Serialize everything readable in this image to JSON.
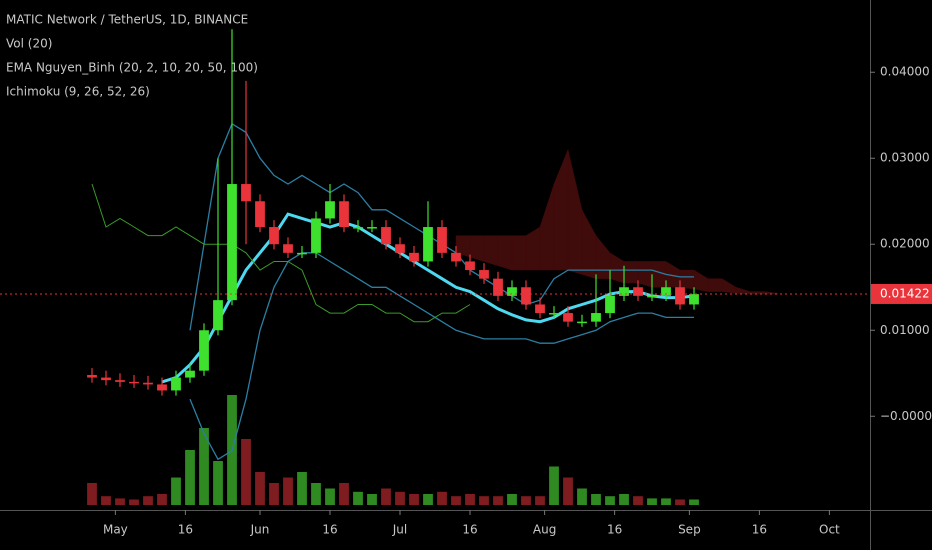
{
  "chart_data": {
    "type": "candlestick",
    "title": "MATIC Network / TetherUS, 1D, BINANCE",
    "indicators": [
      "Vol (20)",
      "EMA Nguyen_Binh (20, 2, 10, 20, 50, 100)",
      "Ichimoku (9, 26, 52, 26)"
    ],
    "categories": [
      null,
      null,
      null,
      null,
      null,
      null,
      null,
      null,
      null,
      null,
      null,
      null,
      null,
      null,
      null,
      null,
      null,
      null,
      null,
      null,
      null,
      null,
      null,
      null,
      null,
      null,
      null,
      null,
      null,
      null,
      null,
      null,
      null,
      null,
      null,
      null,
      null,
      null,
      null,
      null,
      null,
      null,
      null,
      null,
      null,
      null,
      null,
      null,
      null,
      null
    ],
    "open": [
      0.0048,
      0.0045,
      0.0042,
      0.004,
      0.0039,
      0.0037,
      0.003,
      0.0045,
      0.0053,
      0.01,
      0.0135,
      0.027,
      0.025,
      0.022,
      0.02,
      0.019,
      0.019,
      0.023,
      0.025,
      0.022,
      0.022,
      0.022,
      0.02,
      0.019,
      0.018,
      0.022,
      0.019,
      0.018,
      0.017,
      0.016,
      0.014,
      0.015,
      0.013,
      0.012,
      0.012,
      0.011,
      0.011,
      0.012,
      0.014,
      0.015,
      0.014,
      0.014,
      0.015,
      0.013,
      null,
      null,
      null,
      null,
      null,
      null
    ],
    "high": [
      0.0056,
      0.0053,
      0.005,
      0.0048,
      0.0047,
      0.0045,
      0.0053,
      0.0061,
      0.0108,
      0.03,
      0.045,
      0.039,
      0.0258,
      0.0228,
      0.0208,
      0.0198,
      0.0238,
      0.027,
      0.0258,
      0.0228,
      0.0228,
      0.0228,
      0.0208,
      0.0198,
      0.025,
      0.0228,
      0.0198,
      0.0188,
      0.0178,
      0.0168,
      0.0158,
      0.0158,
      0.0138,
      0.0128,
      0.0128,
      0.0118,
      0.0165,
      0.017,
      0.0175,
      0.0158,
      0.0165,
      0.0158,
      0.0158,
      0.015,
      null,
      null,
      null,
      null,
      null,
      null
    ],
    "low": [
      0.0039,
      0.0036,
      0.0034,
      0.0033,
      0.0031,
      0.0024,
      0.0024,
      0.0039,
      0.0047,
      0.0094,
      0.0129,
      0.02,
      0.0214,
      0.0194,
      0.0184,
      0.0184,
      0.0184,
      0.0224,
      0.0214,
      0.0214,
      0.0214,
      0.0194,
      0.0184,
      0.0174,
      0.0174,
      0.0184,
      0.0174,
      0.0164,
      0.0154,
      0.0134,
      0.0134,
      0.0124,
      0.0114,
      0.0114,
      0.0104,
      0.0104,
      0.0104,
      0.0114,
      0.0134,
      0.0134,
      0.0134,
      0.0134,
      0.0124,
      0.0124,
      null,
      null,
      null,
      null,
      null,
      null
    ],
    "close": [
      0.0045,
      0.0042,
      0.004,
      0.0039,
      0.0037,
      0.003,
      0.0045,
      0.0053,
      0.01,
      0.0135,
      0.027,
      0.025,
      0.022,
      0.02,
      0.019,
      0.019,
      0.023,
      0.025,
      0.022,
      0.022,
      0.022,
      0.02,
      0.019,
      0.018,
      0.022,
      0.019,
      0.018,
      0.017,
      0.016,
      0.014,
      0.015,
      0.013,
      0.012,
      0.012,
      0.011,
      0.011,
      0.012,
      0.014,
      0.015,
      0.014,
      0.014,
      0.015,
      0.013,
      0.0142,
      null,
      null,
      null,
      null,
      null,
      null
    ],
    "up_color": "#3fe12f",
    "down_color": "#e8343a",
    "volume": {
      "values": [
        20,
        8,
        6,
        5,
        8,
        10,
        25,
        50,
        70,
        40,
        100,
        60,
        30,
        20,
        25,
        30,
        20,
        15,
        20,
        12,
        10,
        15,
        12,
        10,
        10,
        12,
        8,
        10,
        8,
        8,
        10,
        8,
        8,
        35,
        25,
        15,
        10,
        8,
        10,
        8,
        6,
        6,
        5,
        5,
        null,
        null,
        null,
        null,
        null,
        null
      ],
      "vlim": [
        0,
        100
      ],
      "up_color": "#2f8a22",
      "down_color": "#7e1c1f"
    },
    "lines": [
      {
        "color": "#4dd9f0",
        "width": 3,
        "values": [
          null,
          null,
          null,
          null,
          null,
          0.004,
          0.0045,
          0.006,
          0.008,
          0.011,
          0.014,
          0.017,
          0.019,
          0.021,
          0.0235,
          0.023,
          0.0225,
          0.022,
          0.0225,
          0.022,
          0.021,
          0.02,
          0.019,
          0.018,
          0.017,
          0.016,
          0.015,
          0.0145,
          0.0135,
          0.0125,
          0.0118,
          0.0112,
          0.011,
          0.0115,
          0.0125,
          0.013,
          0.0135,
          0.0142,
          0.0145,
          0.0145,
          0.014,
          0.0138,
          0.0138,
          0.014,
          null,
          null,
          null,
          null,
          null,
          null
        ]
      },
      {
        "color": "#2b7fa3",
        "width": 1.3,
        "values": [
          null,
          null,
          null,
          null,
          null,
          null,
          null,
          0.01,
          0.02,
          0.03,
          0.034,
          0.033,
          0.03,
          0.028,
          0.027,
          0.028,
          0.027,
          0.026,
          0.027,
          0.026,
          0.024,
          0.024,
          0.023,
          0.022,
          0.021,
          0.02,
          0.019,
          0.017,
          0.016,
          0.015,
          0.014,
          0.013,
          0.0135,
          0.016,
          0.017,
          0.017,
          0.017,
          0.017,
          0.017,
          0.017,
          0.017,
          0.0165,
          0.0162,
          0.0162,
          null,
          null,
          null,
          null,
          null,
          null
        ]
      },
      {
        "color": "#2b7fa3",
        "width": 1.3,
        "values": [
          null,
          null,
          null,
          null,
          null,
          null,
          null,
          0.002,
          -0.002,
          -0.005,
          -0.004,
          0.002,
          0.01,
          0.015,
          0.018,
          0.019,
          0.019,
          0.018,
          0.017,
          0.016,
          0.015,
          0.015,
          0.014,
          0.013,
          0.012,
          0.011,
          0.01,
          0.0095,
          0.009,
          0.009,
          0.009,
          0.009,
          0.0085,
          0.0085,
          0.009,
          0.0095,
          0.01,
          0.011,
          0.0115,
          0.012,
          0.012,
          0.0115,
          0.0115,
          0.0115,
          null,
          null,
          null,
          null,
          null,
          null
        ]
      },
      {
        "color": "#3a9a2a",
        "width": 1,
        "values": [
          0.027,
          0.022,
          0.023,
          0.022,
          0.021,
          0.021,
          0.022,
          0.021,
          0.02,
          0.02,
          0.02,
          0.019,
          0.017,
          0.018,
          0.018,
          0.017,
          0.013,
          0.012,
          0.012,
          0.013,
          0.013,
          0.012,
          0.012,
          0.011,
          0.011,
          0.012,
          0.012,
          0.013,
          null,
          null,
          null,
          null,
          null,
          null,
          null,
          null,
          null,
          null,
          null,
          null,
          null,
          null,
          null,
          null,
          null,
          null,
          null,
          null,
          null,
          null
        ]
      }
    ],
    "cloud": {
      "color": "#4a0d0d",
      "upper": [
        null,
        null,
        null,
        null,
        null,
        null,
        null,
        null,
        null,
        null,
        null,
        null,
        null,
        null,
        null,
        null,
        null,
        null,
        null,
        null,
        null,
        null,
        null,
        null,
        null,
        null,
        0.021,
        0.021,
        0.021,
        0.021,
        0.021,
        0.021,
        0.022,
        0.027,
        0.031,
        0.024,
        0.021,
        0.019,
        0.018,
        0.018,
        0.018,
        0.018,
        0.017,
        0.017,
        0.016,
        0.016,
        0.015,
        0.0145,
        0.0145,
        0.0143
      ],
      "lower": [
        null,
        null,
        null,
        null,
        null,
        null,
        null,
        null,
        null,
        null,
        null,
        null,
        null,
        null,
        null,
        null,
        null,
        null,
        null,
        null,
        null,
        null,
        null,
        null,
        null,
        null,
        0.019,
        0.0185,
        0.018,
        0.0175,
        0.017,
        0.017,
        0.017,
        0.017,
        0.017,
        0.0165,
        0.016,
        0.016,
        0.0155,
        0.0155,
        0.015,
        0.015,
        0.015,
        0.0148,
        0.0145,
        0.0145,
        0.0143,
        0.0142,
        0.0142,
        0.0142
      ]
    },
    "xlim": [
      -6.571,
      55.571
    ],
    "ylim": [
      -0.0109,
      0.0484
    ],
    "yticks": [
      {
        "value": 0.04,
        "label": "0.04000"
      },
      {
        "value": 0.03,
        "label": "0.03000"
      },
      {
        "value": 0.02,
        "label": "0.02000"
      },
      {
        "value": 0.01,
        "label": "0.01000"
      },
      {
        "value": 0,
        "label": "−0.00000"
      }
    ],
    "xticks": [
      {
        "value": 1.67,
        "label": "May"
      },
      {
        "value": 6.67,
        "label": "16"
      },
      {
        "value": 12,
        "label": "Jun"
      },
      {
        "value": 17,
        "label": "16"
      },
      {
        "value": 22,
        "label": "Jul"
      },
      {
        "value": 27,
        "label": "16"
      },
      {
        "value": 32.33,
        "label": "Aug"
      },
      {
        "value": 37.33,
        "label": "16"
      },
      {
        "value": 42.67,
        "label": "Sep"
      },
      {
        "value": 47.67,
        "label": "16"
      },
      {
        "value": 52.67,
        "label": "Oct"
      }
    ],
    "last_price": {
      "value": 0.01422,
      "label": "0.01422",
      "color": "#e8343a"
    }
  }
}
